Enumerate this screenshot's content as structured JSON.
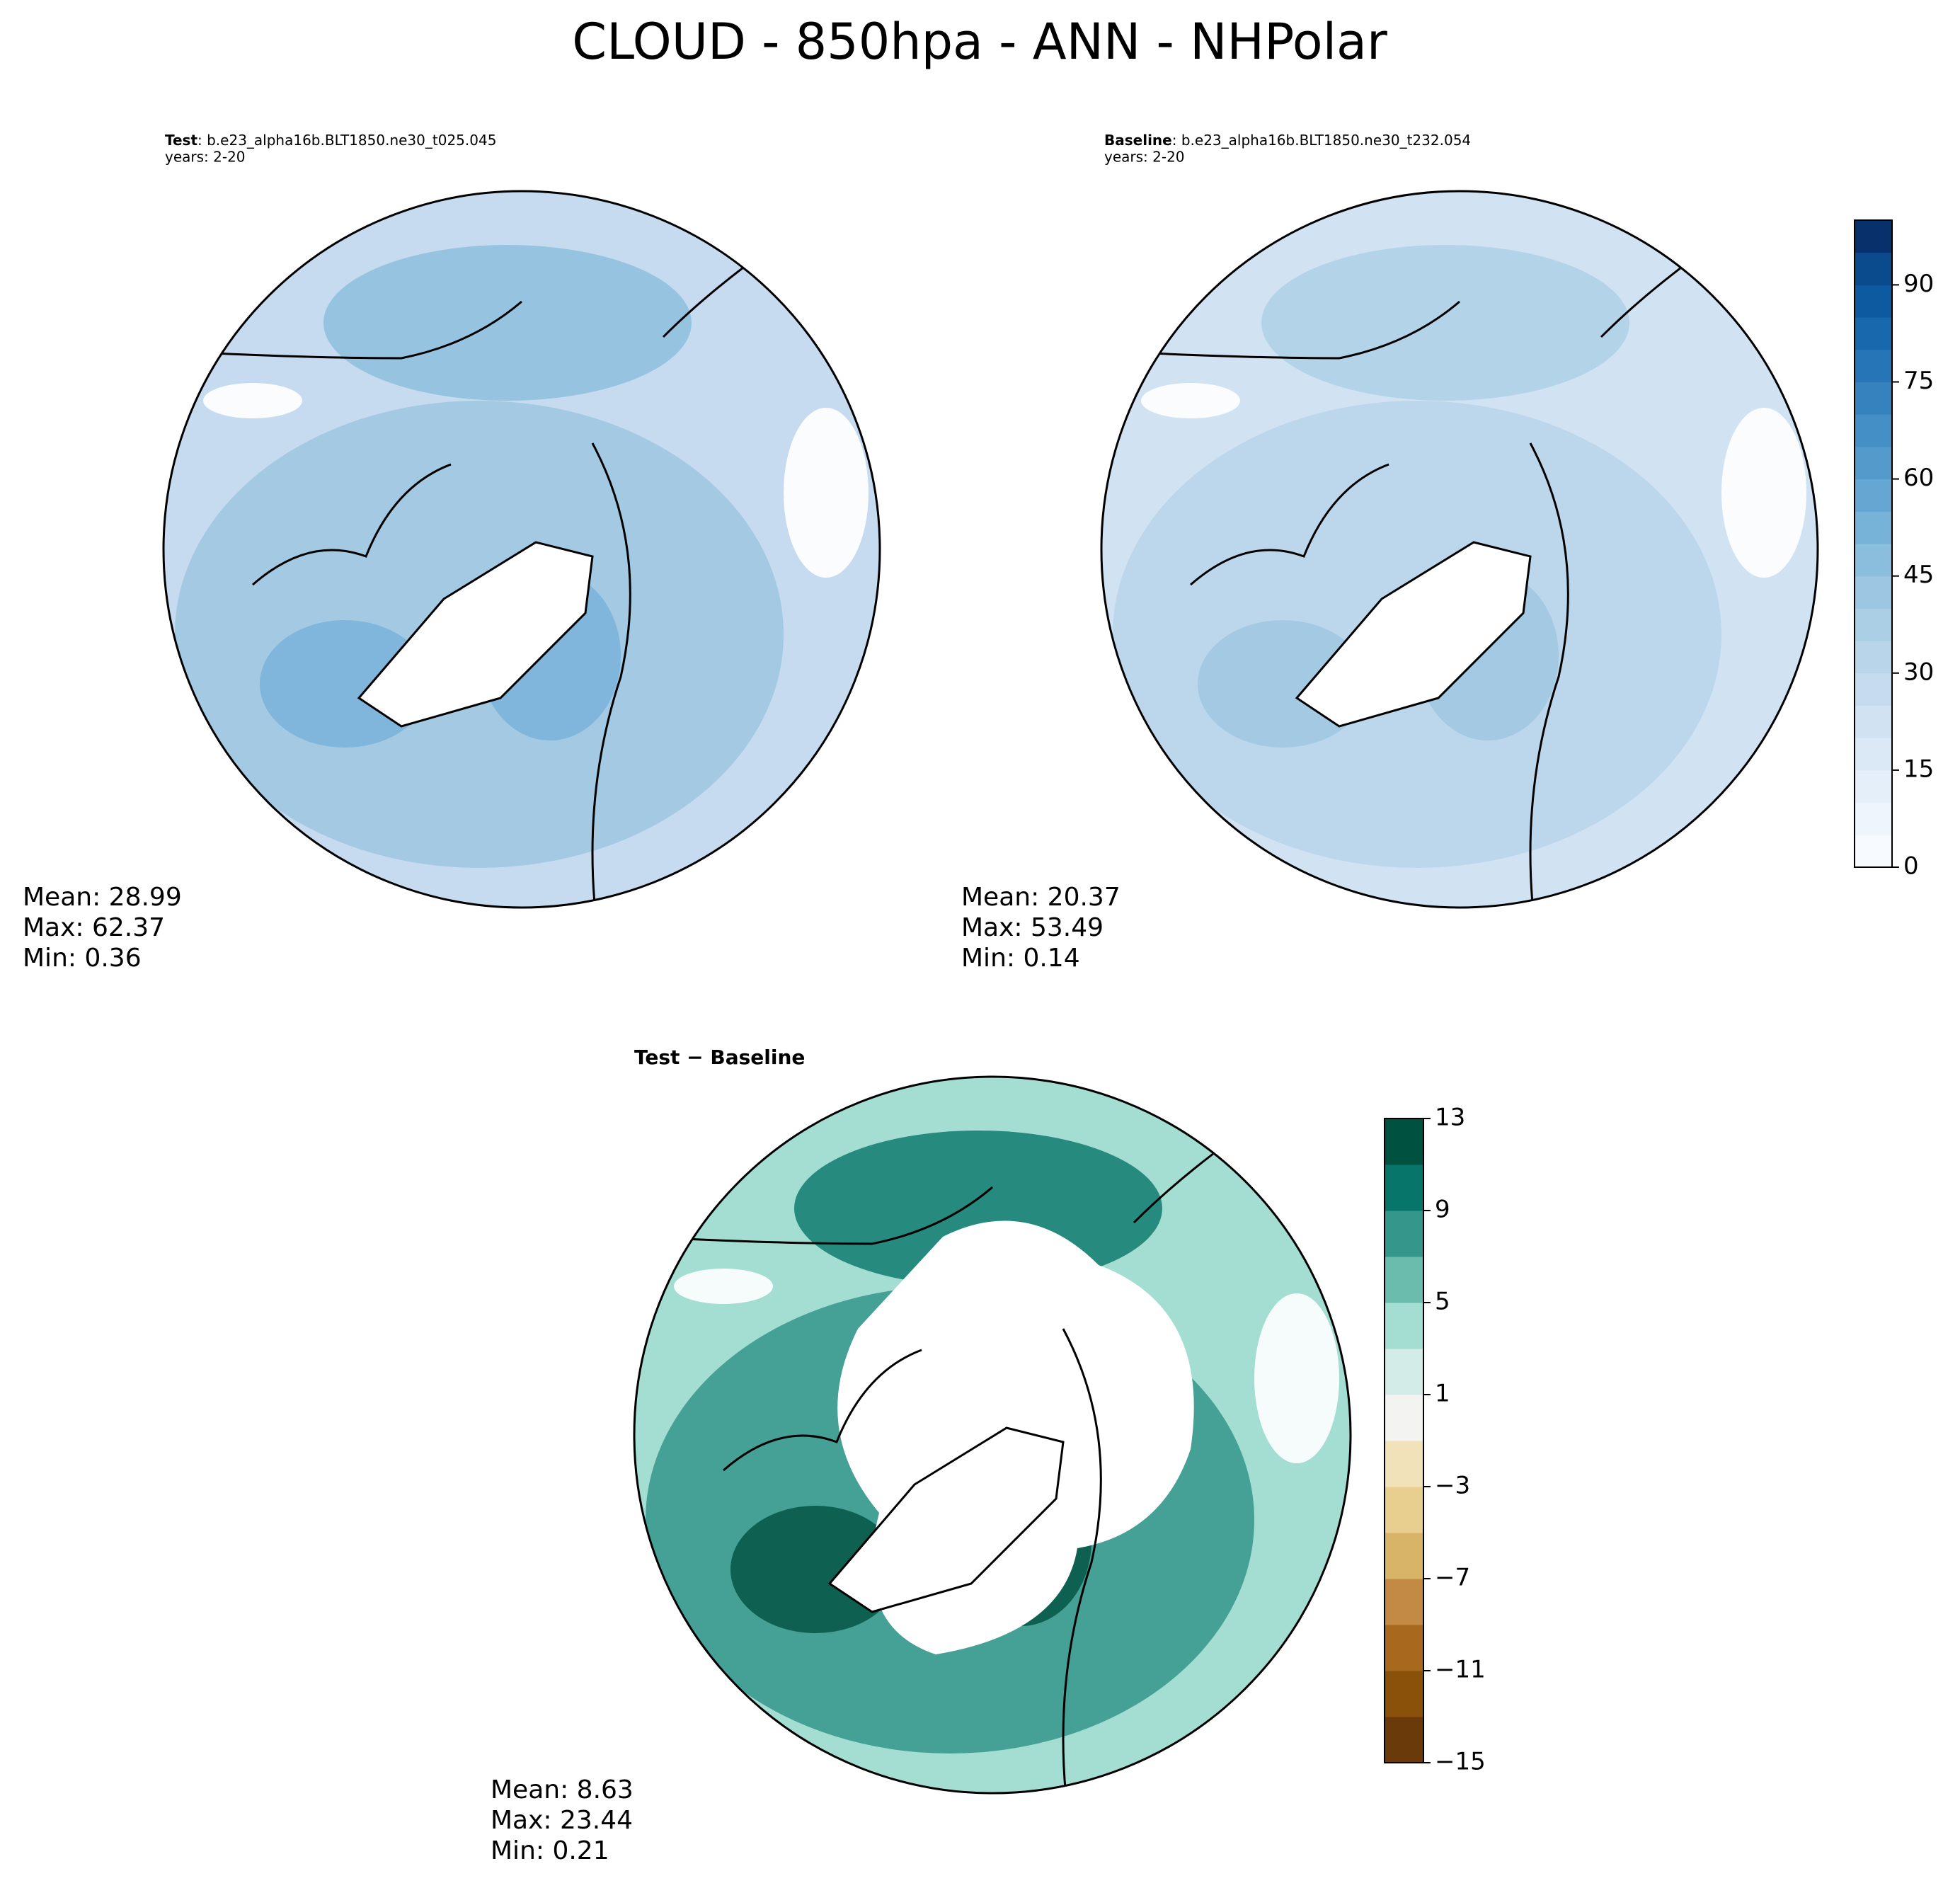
{
  "chart_data": [
    {
      "type": "map",
      "title": "CLOUD - 850hpa - ANN - NHPolar",
      "subtitle_bold": "Test",
      "subtitle": ": b.e23_alpha16b.BLT1850.ne30_t025.045",
      "years": "years: 2-20",
      "stats": [
        "Mean: 28.99",
        "Max: 62.37",
        "Min:  0.36"
      ]
    },
    {
      "type": "map",
      "subtitle_bold": "Baseline",
      "subtitle": ": b.e23_alpha16b.BLT1850.ne30_t232.054",
      "years": "years: 2-20",
      "stats": [
        "Mean: 20.37",
        "Max: 53.49",
        "Min:  0.14"
      ],
      "colorbar": {
        "ylim": [
          0,
          100
        ],
        "yticks": [
          0,
          15,
          30,
          45,
          60,
          75,
          90
        ],
        "colors": [
          "#f7fbff",
          "#eef5fc",
          "#e4eff9",
          "#dbe9f6",
          "#d1e2f3",
          "#c6dbef",
          "#b9d5ea",
          "#abcfe5",
          "#9cc6e1",
          "#8abedc",
          "#77b2d8",
          "#65a6d2",
          "#549bcb",
          "#448fc5",
          "#3582be",
          "#2575b7",
          "#1868ad",
          "#0d5aa1",
          "#0a4b8d",
          "#08306b"
        ]
      }
    },
    {
      "type": "map",
      "subtitle": "Test − Baseline",
      "stats": [
        "Mean:  8.63",
        "Max: 23.44",
        "Min:  0.21"
      ],
      "colorbar": {
        "ylim": [
          -15,
          13
        ],
        "yticks": [
          {
            "value": -15,
            "label": "−15"
          },
          {
            "value": -11,
            "label": "−11"
          },
          {
            "value": -7,
            "label": "−7"
          },
          {
            "value": -3,
            "label": "−3"
          },
          1,
          5,
          9,
          13
        ],
        "colors": [
          "#6b3a0a",
          "#8a510b",
          "#a8691e",
          "#c28a45",
          "#d8b468",
          "#e8cf8f",
          "#f2e2b9",
          "#f3f3f1",
          "#d3ece8",
          "#a4ddd2",
          "#6cbcae",
          "#35968b",
          "#07756a",
          "#00513f"
        ]
      }
    }
  ]
}
